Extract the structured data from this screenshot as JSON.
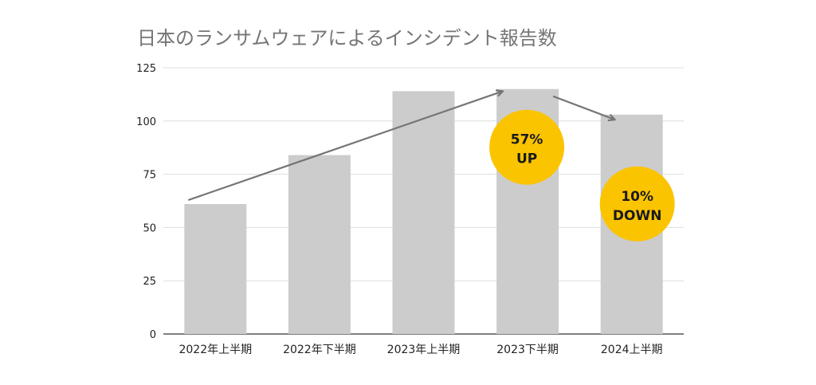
{
  "chart_data": {
    "type": "bar",
    "title": "日本のランサムウェアによるインシデント報告数",
    "categories": [
      "2022年上半期",
      "2022年下半期",
      "2023年上半期",
      "2023下半期",
      "2024上半期"
    ],
    "values": [
      61,
      84,
      114,
      115,
      103
    ],
    "ylim": [
      0,
      125
    ],
    "yticks": [
      0,
      25,
      50,
      75,
      100,
      125
    ],
    "grid": true,
    "xlabel": "",
    "ylabel": "",
    "bar_color": "#cccccc",
    "grid_color": "#dddddd",
    "annotations": [
      {
        "line1": "57%",
        "line2": "UP",
        "color": "#fbc400"
      },
      {
        "line1": "10%",
        "line2": "DOWN",
        "color": "#fbc400"
      }
    ],
    "arrow_color": "#757575"
  }
}
